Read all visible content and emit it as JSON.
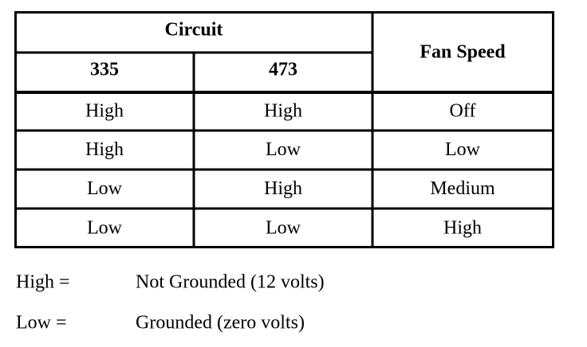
{
  "table": {
    "header": {
      "group": "Circuit",
      "columns": [
        "335",
        "473"
      ],
      "last": "Fan Speed"
    },
    "rows": [
      [
        "High",
        "High",
        "Off"
      ],
      [
        "High",
        "Low",
        "Low"
      ],
      [
        "Low",
        "High",
        "Medium"
      ],
      [
        "Low",
        "Low",
        "High"
      ]
    ]
  },
  "legend": [
    {
      "term": "High =",
      "definition": "Not Grounded (12 volts)"
    },
    {
      "term": "Low =",
      "definition": "Grounded (zero volts)"
    }
  ]
}
